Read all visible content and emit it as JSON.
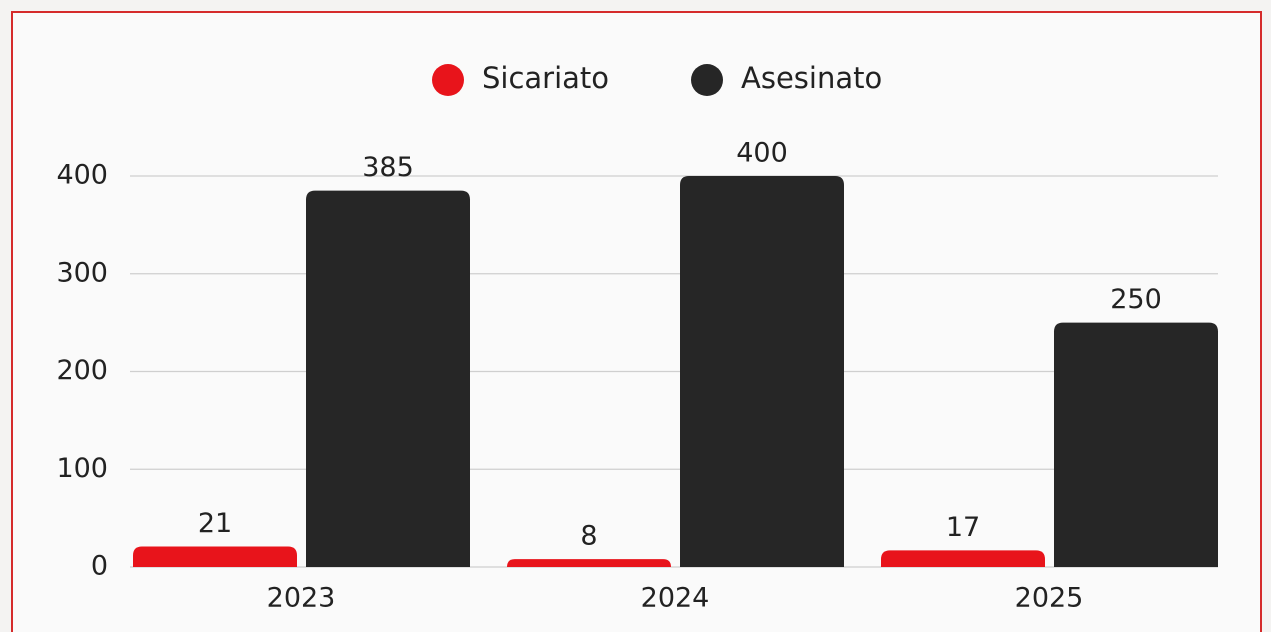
{
  "chart_data": {
    "type": "bar",
    "categories": [
      "2023",
      "2024",
      "2025"
    ],
    "series": [
      {
        "name": "Sicariato",
        "color": "#e8141b",
        "values": [
          21,
          8,
          17
        ]
      },
      {
        "name": "Asesinato",
        "color": "#262626",
        "values": [
          385,
          400,
          250
        ]
      }
    ],
    "ylim": [
      0,
      400
    ],
    "yticks": [
      0,
      100,
      200,
      300,
      400
    ],
    "grid": true,
    "legend": "top"
  }
}
